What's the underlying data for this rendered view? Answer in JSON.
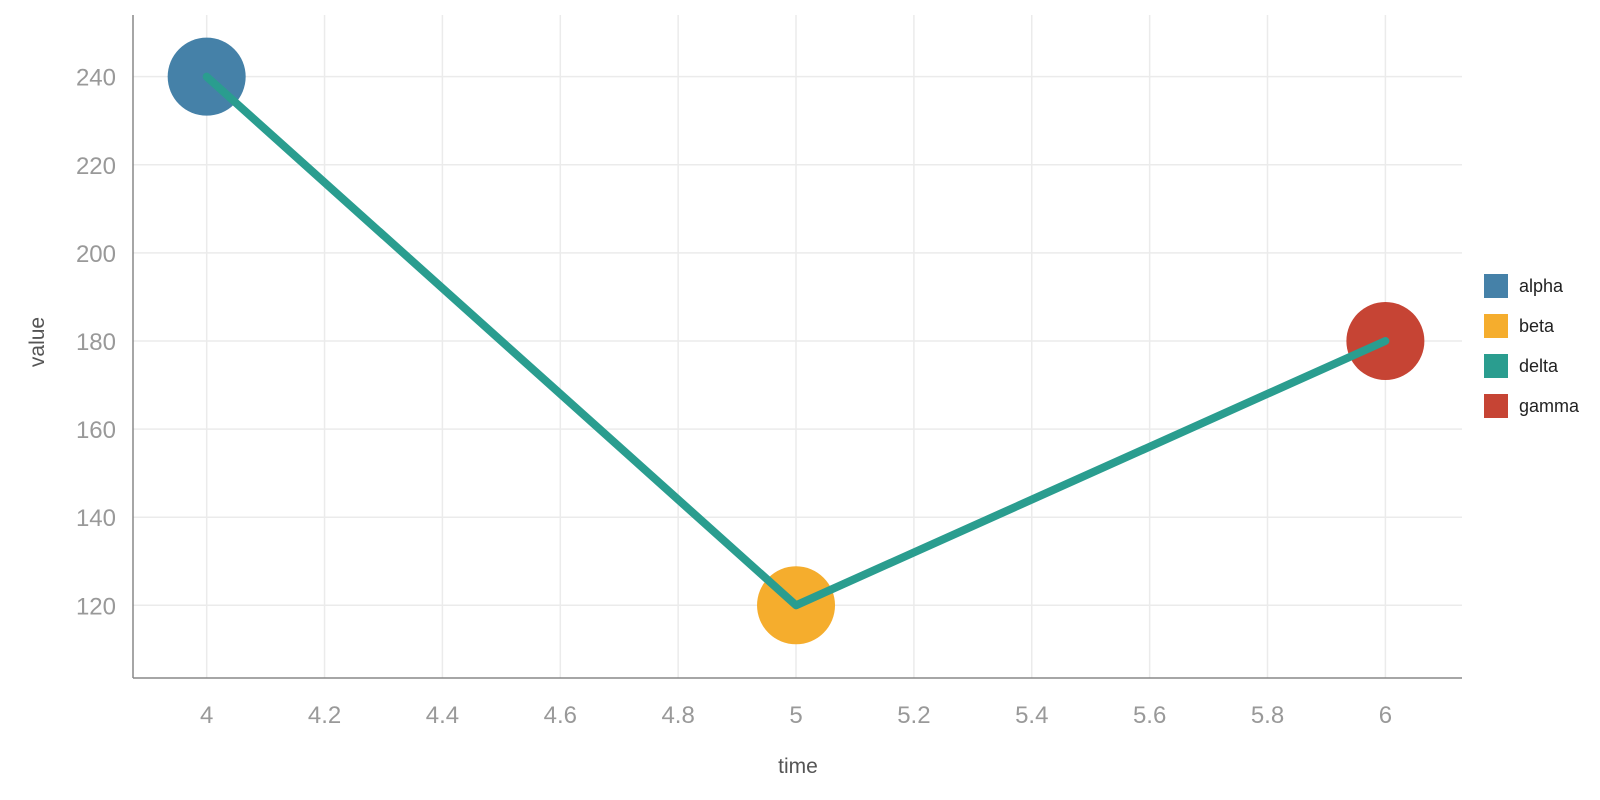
{
  "chart_data": {
    "type": "scatter",
    "xlabel": "time",
    "ylabel": "value",
    "xlim": [
      3.875,
      6.13
    ],
    "ylim": [
      103.5,
      254
    ],
    "x_ticks": [
      4,
      4.2,
      4.4,
      4.6,
      4.8,
      5,
      5.2,
      5.4,
      5.6,
      5.8,
      6
    ],
    "y_ticks": [
      120,
      140,
      160,
      180,
      200,
      220,
      240
    ],
    "grid": true,
    "legend_position": "right",
    "series": [
      {
        "name": "alpha",
        "type": "scatter",
        "color": "#4581a8",
        "points": [
          {
            "x": 4,
            "y": 240
          }
        ]
      },
      {
        "name": "beta",
        "type": "scatter",
        "color": "#f5ad2d",
        "points": [
          {
            "x": 5,
            "y": 120
          }
        ]
      },
      {
        "name": "delta",
        "type": "line",
        "color": "#2a9d8f",
        "points": [
          {
            "x": 4,
            "y": 240
          },
          {
            "x": 5,
            "y": 120
          },
          {
            "x": 6,
            "y": 180
          }
        ]
      },
      {
        "name": "gamma",
        "type": "scatter",
        "color": "#c64434",
        "points": [
          {
            "x": 6,
            "y": 180
          }
        ]
      }
    ]
  }
}
